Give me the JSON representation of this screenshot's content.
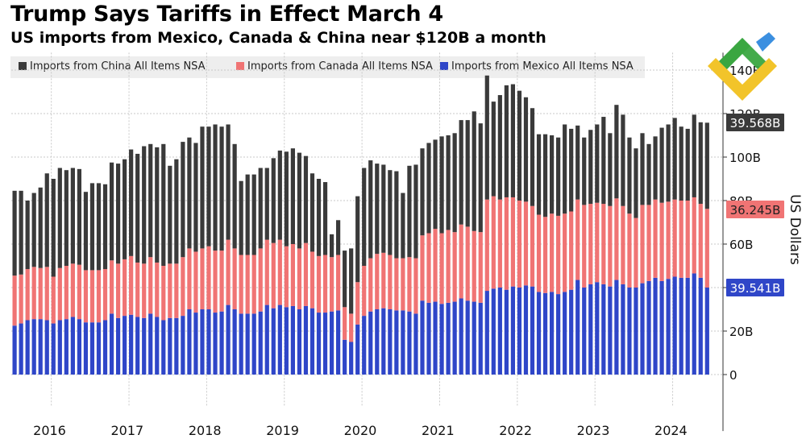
{
  "title": "Trump Says Tariffs in Effect March 4",
  "subtitle": "US imports from Mexico, Canada & China near $120B a month",
  "legend": [
    {
      "label": "Imports from China All Items NSA",
      "color": "#3a3a3a"
    },
    {
      "label": "Imports from Canada All Items NSA",
      "color": "#f07474"
    },
    {
      "label": "Imports from Mexico All Items NSA",
      "color": "#2f46c8"
    }
  ],
  "colors": {
    "china": "#3a3a3a",
    "canada": "#f07474",
    "mexico": "#2f46c8",
    "grid": "#c8c8c8"
  },
  "chart_data": {
    "type": "bar",
    "stacked": true,
    "title": "Trump Says Tariffs in Effect March 4",
    "subtitle": "US imports from Mexico, Canada & China near $120B a month",
    "ylabel": "US Dollars",
    "ylim": [
      -13,
      148
    ],
    "yticks": [
      {
        "value": 0,
        "label": "0"
      },
      {
        "value": 20,
        "label": "20B"
      },
      {
        "value": 40,
        "label": "40B"
      },
      {
        "value": 60,
        "label": "60B"
      },
      {
        "value": 80,
        "label": "80B"
      },
      {
        "value": 100,
        "label": "100B"
      },
      {
        "value": 120,
        "label": "120B"
      },
      {
        "value": 140,
        "label": "140B"
      }
    ],
    "years": [
      "2016",
      "2017",
      "2018",
      "2019",
      "2020",
      "2021",
      "2022",
      "2023",
      "2024"
    ],
    "start": "2016-01",
    "x": [
      "2016-01",
      "2016-02",
      "2016-03",
      "2016-04",
      "2016-05",
      "2016-06",
      "2016-07",
      "2016-08",
      "2016-09",
      "2016-10",
      "2016-11",
      "2016-12",
      "2017-01",
      "2017-02",
      "2017-03",
      "2017-04",
      "2017-05",
      "2017-06",
      "2017-07",
      "2017-08",
      "2017-09",
      "2017-10",
      "2017-11",
      "2017-12",
      "2018-01",
      "2018-02",
      "2018-03",
      "2018-04",
      "2018-05",
      "2018-06",
      "2018-07",
      "2018-08",
      "2018-09",
      "2018-10",
      "2018-11",
      "2018-12",
      "2019-01",
      "2019-02",
      "2019-03",
      "2019-04",
      "2019-05",
      "2019-06",
      "2019-07",
      "2019-08",
      "2019-09",
      "2019-10",
      "2019-11",
      "2019-12",
      "2020-01",
      "2020-02",
      "2020-03",
      "2020-04",
      "2020-05",
      "2020-06",
      "2020-07",
      "2020-08",
      "2020-09",
      "2020-10",
      "2020-11",
      "2020-12",
      "2021-01",
      "2021-02",
      "2021-03",
      "2021-04",
      "2021-05",
      "2021-06",
      "2021-07",
      "2021-08",
      "2021-09",
      "2021-10",
      "2021-11",
      "2021-12",
      "2022-01",
      "2022-02",
      "2022-03",
      "2022-04",
      "2022-05",
      "2022-06",
      "2022-07",
      "2022-08",
      "2022-09",
      "2022-10",
      "2022-11",
      "2022-12",
      "2023-01",
      "2023-02",
      "2023-03",
      "2023-04",
      "2023-05",
      "2023-06",
      "2023-07",
      "2023-08",
      "2023-09",
      "2023-10",
      "2023-11",
      "2023-12",
      "2024-01",
      "2024-02",
      "2024-03",
      "2024-04",
      "2024-05",
      "2024-06",
      "2024-07",
      "2024-08",
      "2024-09",
      "2024-10",
      "2024-11",
      "2024-12"
    ],
    "series": [
      {
        "name": "Imports from Mexico All Items NSA",
        "values": [
          22.5,
          23.5,
          25,
          25.5,
          25.5,
          25,
          23.5,
          25,
          25.5,
          26.5,
          25.5,
          24,
          24,
          24,
          25,
          28,
          26,
          27,
          27.5,
          26.5,
          26,
          28,
          26.5,
          25,
          26,
          26,
          27,
          30,
          28.5,
          30,
          30,
          28.5,
          29,
          32,
          30,
          28,
          28,
          28,
          29,
          32,
          30.5,
          32,
          31,
          31.5,
          30,
          31.5,
          30.5,
          28.5,
          28.5,
          29,
          29.5,
          16,
          15,
          23,
          27,
          29,
          30,
          30.5,
          30,
          29.5,
          29.5,
          29,
          28,
          34,
          33,
          33.5,
          32.5,
          33,
          33.5,
          35,
          34,
          33.5,
          33,
          38.5,
          39.5,
          40,
          39,
          40.5,
          40,
          41,
          40.5,
          38,
          37.5,
          38,
          37,
          38,
          39,
          43.5,
          40,
          41.5,
          42.5,
          41.5,
          40.5,
          43.5,
          41.5,
          40,
          40,
          42,
          43,
          44.5,
          43,
          44,
          45,
          44.5,
          44.5,
          46.5,
          44.5,
          40
        ]
      },
      {
        "name": "Imports from Canada All Items NSA",
        "values": [
          23,
          22.5,
          23.5,
          24,
          23.5,
          24.5,
          21.5,
          24,
          24.5,
          24.5,
          25,
          24,
          24,
          24,
          23.5,
          24.5,
          25,
          26,
          27,
          25,
          25,
          26,
          25,
          25,
          25,
          25,
          27,
          28,
          28,
          28,
          29,
          28.5,
          28,
          30,
          28,
          27,
          27,
          27,
          29,
          30,
          30,
          30,
          28,
          28.5,
          28,
          29,
          26,
          26,
          26.5,
          25,
          25.5,
          15,
          13,
          19.5,
          23,
          24.5,
          25.5,
          25.5,
          25,
          24,
          24,
          25,
          25.5,
          30,
          32,
          33.5,
          32.5,
          33.5,
          32,
          34,
          34,
          32.5,
          32.5,
          42,
          42.5,
          40.5,
          42.5,
          41,
          40,
          38.5,
          37,
          35.5,
          35,
          36,
          36,
          36,
          36,
          37,
          38,
          37,
          36.5,
          37,
          37,
          37.5,
          36,
          34,
          32,
          36,
          35,
          36,
          36,
          35.5,
          35.5,
          35.5,
          35.5,
          35,
          34,
          36.2
        ]
      },
      {
        "name": "Imports from China All Items NSA",
        "values": [
          39,
          38.5,
          31.5,
          34,
          37,
          43,
          45,
          46,
          44,
          44,
          44,
          36,
          40,
          40,
          39,
          45,
          46,
          46,
          49,
          50,
          54,
          52,
          53,
          56,
          45,
          48,
          53,
          51,
          50,
          56,
          55,
          58,
          57,
          53,
          48,
          34,
          37,
          37,
          37,
          33,
          39,
          41,
          43.5,
          44,
          44,
          40,
          36,
          35.5,
          33.5,
          10.5,
          16,
          26,
          30,
          39.5,
          45,
          45,
          41.5,
          40.5,
          39,
          40,
          30,
          42,
          43,
          40,
          41.5,
          41,
          44.5,
          43.5,
          45.5,
          48,
          49,
          55,
          50,
          57,
          43.5,
          48,
          51.5,
          52,
          50.5,
          48,
          45,
          37,
          38,
          36,
          36,
          41,
          38,
          34,
          31,
          34,
          36,
          40,
          33.5,
          43,
          42,
          35,
          32,
          33,
          28,
          29,
          34.5,
          35.5,
          37.5,
          34,
          33,
          38,
          37.5,
          39.6
        ]
      }
    ],
    "end_labels": [
      {
        "series": "Imports from China All Items NSA",
        "text": "39.568B",
        "color": "#3a3a3a"
      },
      {
        "series": "Imports from Canada All Items NSA",
        "text": "36.245B",
        "color": "#f07474"
      },
      {
        "series": "Imports from Mexico All Items NSA",
        "text": "39.541B",
        "color": "#2f46c8"
      }
    ]
  }
}
